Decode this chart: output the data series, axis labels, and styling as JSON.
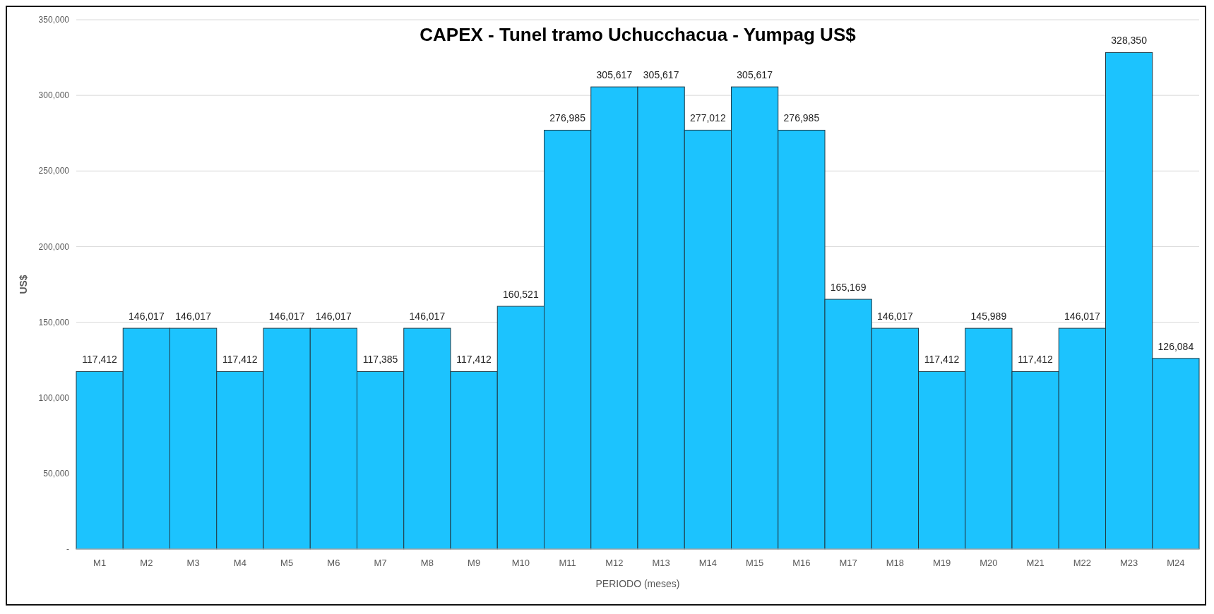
{
  "chart_data": {
    "type": "bar",
    "title": "CAPEX - Tunel tramo Uchucchacua - Yumpag  US$",
    "xlabel": "PERIODO (meses)",
    "ylabel": "US$",
    "categories": [
      "M1",
      "M2",
      "M3",
      "M4",
      "M5",
      "M6",
      "M7",
      "M8",
      "M9",
      "M10",
      "M11",
      "M12",
      "M13",
      "M14",
      "M15",
      "M16",
      "M17",
      "M18",
      "M19",
      "M20",
      "M21",
      "M22",
      "M23",
      "M24"
    ],
    "values": [
      117412,
      146017,
      146017,
      117412,
      146017,
      146017,
      117385,
      146017,
      117412,
      160521,
      276985,
      305617,
      305617,
      277012,
      305617,
      276985,
      165169,
      146017,
      117412,
      145989,
      117412,
      146017,
      328350,
      126084
    ],
    "color": "#1cc3fe",
    "ylim": [
      0,
      350000
    ],
    "yticks": [
      {
        "value": 0,
        "label": "-"
      },
      {
        "value": 50000,
        "label": "50,000"
      },
      {
        "value": 100000,
        "label": "100,000"
      },
      {
        "value": 150000,
        "label": "150,000"
      },
      {
        "value": 200000,
        "label": "200,000"
      },
      {
        "value": 250000,
        "label": "250,000"
      },
      {
        "value": 300000,
        "label": "300,000"
      },
      {
        "value": 350000,
        "label": "350,000"
      }
    ],
    "value_labels": [
      "117,412",
      "146,017",
      "146,017",
      "117,412",
      "146,017",
      "146,017",
      "117,385",
      "146,017",
      "117,412",
      "160,521",
      "276,985",
      "305,617",
      "305,617",
      "277,012",
      "305,617",
      "276,985",
      "165,169",
      "146,017",
      "117,412",
      "145,989",
      "117,412",
      "146,017",
      "328,350",
      "126,084"
    ],
    "grid": "y"
  }
}
